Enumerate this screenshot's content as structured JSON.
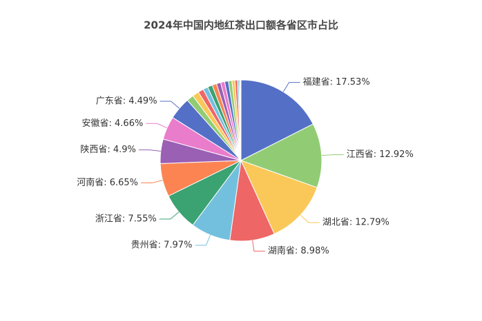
{
  "chart_data": {
    "type": "pie",
    "title": "2024年中国内地红茶出口额各省区市占比",
    "values": [
      17.53,
      12.92,
      12.79,
      8.98,
      7.97,
      7.55,
      6.65,
      4.9,
      4.66,
      4.49,
      1.4,
      1.3,
      1.1,
      1.0,
      0.95,
      0.9,
      0.85,
      0.8,
      0.75,
      0.7,
      0.6,
      0.5,
      0.3,
      0.2,
      0.12,
      0.09
    ],
    "value_labels": [
      "福建省: 17.53%",
      "江西省: 12.92%",
      "湖北省: 12.79%",
      "湖南省: 8.98%",
      "贵州省: 7.97%",
      "浙江省: 7.55%",
      "河南省: 6.65%",
      "陕西省: 4.9%",
      "安徽省: 4.66%",
      "广东省: 4.49%",
      null,
      null,
      null,
      null,
      null,
      null,
      null,
      null,
      null,
      null,
      null,
      null,
      null,
      null,
      null,
      null
    ],
    "colors": [
      "#5470c6",
      "#91cc75",
      "#fac858",
      "#ee6666",
      "#73c0de",
      "#3ba272",
      "#fc8452",
      "#9a60b4",
      "#ea7ccc"
    ]
  }
}
